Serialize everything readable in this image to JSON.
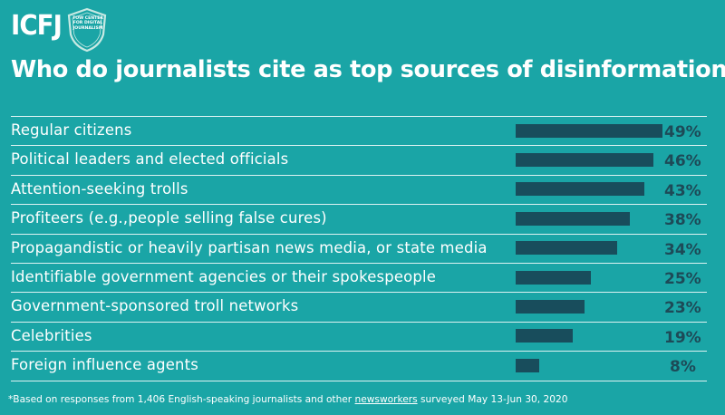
{
  "header": {
    "logo_text": "ICFJ",
    "badge_lines": [
      "TOW CENTER",
      "FOR DIGITAL",
      "JOURNALISM"
    ],
    "title": "Who do journalists cite as top sources of disinformation?"
  },
  "colors": {
    "background": "#1aa5a6",
    "bar": "#184d5c",
    "percent_text": "#1d4a57",
    "text": "#ffffff"
  },
  "chart_data": {
    "type": "bar",
    "orientation": "horizontal",
    "title": "Who do journalists cite as top sources of disinformation?",
    "categories": [
      "Regular citizens",
      "Political leaders and elected officials",
      "Attention-seeking trolls",
      "Profiteers (e.g.,people selling false cures)",
      "Propagandistic or heavily partisan news media, or state media",
      "Identifiable government agencies or their spokespeople",
      "Government-sponsored troll networks",
      "Celebrities",
      "Foreign influence agents"
    ],
    "values": [
      49,
      46,
      43,
      38,
      34,
      25,
      23,
      19,
      8
    ],
    "value_labels": [
      "49%",
      "46%",
      "43%",
      "38%",
      "34%",
      "25%",
      "23%",
      "19%",
      "8%"
    ],
    "unit": "%",
    "xlim": [
      0,
      49
    ],
    "grid": false,
    "legend": "none"
  },
  "footnote": {
    "prefix": "*Based on responses from 1,406 English-speaking journalists and other ",
    "link_text": "newsworkers",
    "suffix": " surveyed May 13-Jun 30, 2020"
  }
}
